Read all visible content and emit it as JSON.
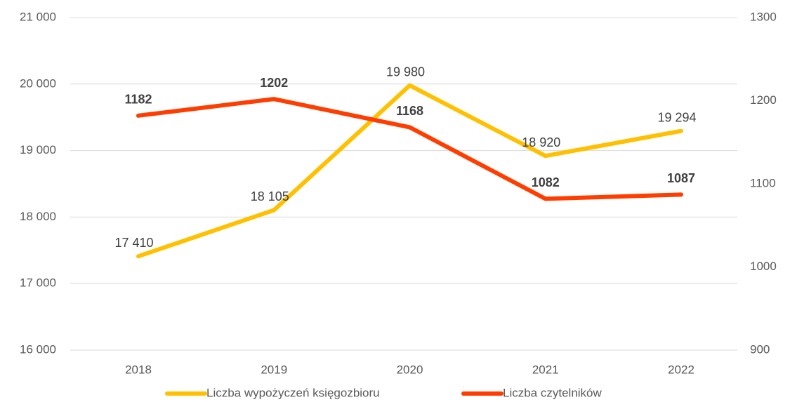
{
  "chart_data": {
    "type": "line",
    "categories": [
      "2018",
      "2019",
      "2020",
      "2021",
      "2022"
    ],
    "series": [
      {
        "name": "Liczba wypożyczeń księgozbioru",
        "color": "#FFC000",
        "values": [
          17410,
          18105,
          19980,
          18920,
          19294
        ],
        "value_labels": [
          "17 410",
          "18 105",
          "19 980",
          "18 920",
          "19 294"
        ]
      },
      {
        "name": "Liczba czytelników",
        "color": "#FF3D00",
        "axis": "y2",
        "values": [
          1182,
          1202,
          1168,
          1082,
          1087
        ]
      }
    ],
    "ylim": [
      16000,
      21000
    ],
    "yticks": [
      {
        "value": 16000,
        "label": "16 000"
      },
      {
        "value": 17000,
        "label": "17 000"
      },
      {
        "value": 18000,
        "label": "18 000"
      },
      {
        "value": 19000,
        "label": "19 000"
      },
      {
        "value": 20000,
        "label": "20 000"
      },
      {
        "value": 21000,
        "label": "21 000"
      }
    ],
    "y2lim": [
      900,
      1300
    ],
    "y2ticks": [
      900,
      1000,
      1100,
      1200,
      1300
    ],
    "grid": true,
    "legend": "bottom"
  }
}
